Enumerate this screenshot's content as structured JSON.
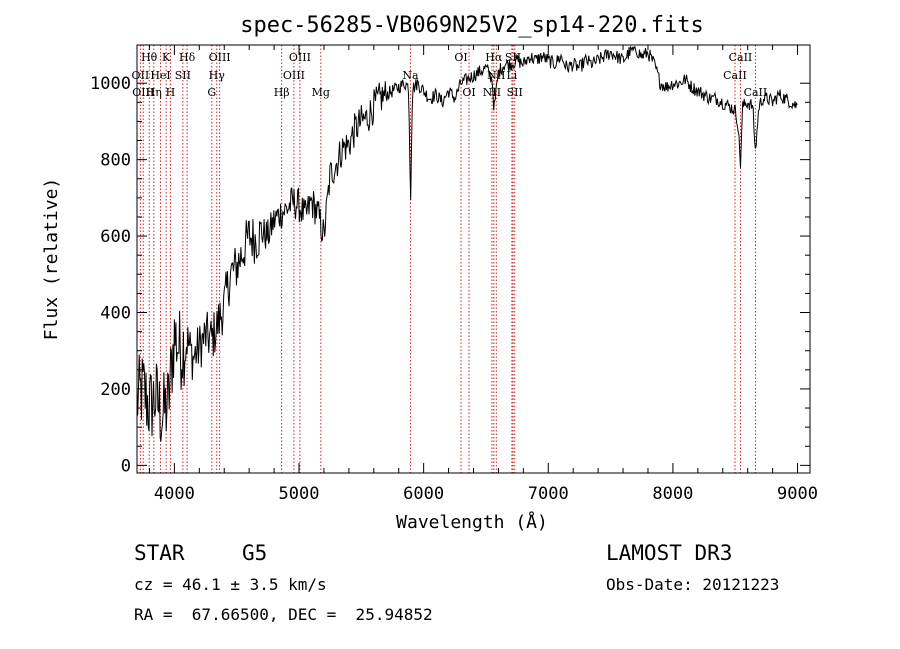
{
  "chart_data": {
    "type": "line",
    "title": "spec-56285-VB069N25V2_sp14-220.fits",
    "xlabel": "Wavelength (Å)",
    "ylabel": "Flux (relative)",
    "xlim": [
      3700,
      9100
    ],
    "ylim": [
      -20,
      1100
    ],
    "xticks": [
      4000,
      5000,
      6000,
      7000,
      8000,
      9000
    ],
    "yticks": [
      0,
      200,
      400,
      600,
      800,
      1000
    ],
    "series": [
      {
        "name": "flux",
        "x": [
          3700,
          3750,
          3800,
          3850,
          3900,
          3950,
          4000,
          4050,
          4100,
          4150,
          4200,
          4250,
          4300,
          4350,
          4400,
          4450,
          4500,
          4550,
          4600,
          4650,
          4700,
          4750,
          4800,
          4850,
          4900,
          4950,
          5000,
          5050,
          5100,
          5150,
          5200,
          5250,
          5300,
          5350,
          5400,
          5450,
          5500,
          5550,
          5600,
          5650,
          5700,
          5750,
          5800,
          5850,
          5880,
          5895,
          5910,
          5950,
          6000,
          6050,
          6100,
          6150,
          6200,
          6250,
          6300,
          6350,
          6400,
          6450,
          6500,
          6550,
          6565,
          6600,
          6650,
          6700,
          6750,
          6800,
          6850,
          6900,
          6950,
          7000,
          7050,
          7100,
          7150,
          7200,
          7250,
          7300,
          7350,
          7400,
          7450,
          7500,
          7550,
          7600,
          7650,
          7700,
          7750,
          7800,
          7850,
          7900,
          7950,
          8000,
          8050,
          8100,
          8150,
          8200,
          8250,
          8300,
          8350,
          8400,
          8450,
          8498,
          8520,
          8542,
          8560,
          8600,
          8640,
          8662,
          8690,
          8720,
          8760,
          8800,
          8850,
          8900,
          8950,
          9000
        ],
        "y": [
          170,
          200,
          150,
          180,
          130,
          160,
          340,
          300,
          330,
          280,
          310,
          340,
          330,
          370,
          420,
          500,
          520,
          560,
          600,
          590,
          610,
          600,
          640,
          660,
          670,
          690,
          680,
          650,
          690,
          660,
          600,
          760,
          790,
          830,
          840,
          880,
          900,
          910,
          940,
          960,
          970,
          980,
          990,
          1000,
          990,
          690,
          985,
          1000,
          980,
          960,
          970,
          950,
          980,
          960,
          1000,
          1010,
          1020,
          1030,
          1040,
          1010,
          930,
          1030,
          1050,
          1050,
          1060,
          1050,
          1070,
          1060,
          1070,
          1060,
          1050,
          1070,
          1040,
          1050,
          1040,
          1060,
          1050,
          1060,
          1070,
          1080,
          1070,
          1060,
          1080,
          1090,
          1070,
          1080,
          1050,
          1000,
          990,
          1000,
          1000,
          1010,
          990,
          980,
          970,
          960,
          960,
          950,
          940,
          930,
          900,
          790,
          940,
          950,
          940,
          820,
          940,
          960,
          960,
          950,
          970,
          960,
          950,
          940
        ]
      }
    ],
    "lines": [
      {
        "wavelength": 3727,
        "labels": [
          "OII"
        ],
        "row": 1
      },
      {
        "wavelength": 3750,
        "labels": [
          "OIII"
        ],
        "row": 2
      },
      {
        "wavelength": 3798,
        "labels": [
          "Hθ"
        ],
        "row": 0
      },
      {
        "wavelength": 3835,
        "labels": [
          "Hη"
        ],
        "row": 2
      },
      {
        "wavelength": 3889,
        "labels": [
          "HeI"
        ],
        "row": 1
      },
      {
        "wavelength": 3934,
        "labels": [
          "K"
        ],
        "row": 0
      },
      {
        "wavelength": 3968,
        "labels": [
          "H"
        ],
        "row": 2
      },
      {
        "wavelength": 4068,
        "labels": [
          "SII"
        ],
        "row": 1
      },
      {
        "wavelength": 4102,
        "labels": [
          "Hδ"
        ],
        "row": 0
      },
      {
        "wavelength": 4300,
        "labels": [
          "G"
        ],
        "row": 2
      },
      {
        "wavelength": 4340,
        "labels": [
          "Hγ"
        ],
        "row": 1
      },
      {
        "wavelength": 4363,
        "labels": [
          "OIII"
        ],
        "row": 0
      },
      {
        "wavelength": 4861,
        "labels": [
          "Hβ"
        ],
        "row": 2
      },
      {
        "wavelength": 4959,
        "labels": [
          "OIII"
        ],
        "row": 1
      },
      {
        "wavelength": 5007,
        "labels": [
          "OIII"
        ],
        "row": 0
      },
      {
        "wavelength": 5175,
        "labels": [
          "Mg"
        ],
        "row": 2
      },
      {
        "wavelength": 5894,
        "labels": [
          "Na"
        ],
        "row": 1
      },
      {
        "wavelength": 6300,
        "labels": [
          "OI"
        ],
        "row": 0
      },
      {
        "wavelength": 6364,
        "labels": [
          "OI"
        ],
        "row": 2
      },
      {
        "wavelength": 6548,
        "labels": [
          "NII"
        ],
        "row": 2
      },
      {
        "wavelength": 6563,
        "labels": [
          "Hα"
        ],
        "row": 0
      },
      {
        "wavelength": 6583,
        "labels": [
          "NII"
        ],
        "row": 1
      },
      {
        "wavelength": 6708,
        "labels": [
          "Li"
        ],
        "row": 1
      },
      {
        "wavelength": 6717,
        "labels": [
          "SII"
        ],
        "row": 0
      },
      {
        "wavelength": 6731,
        "labels": [
          "SII"
        ],
        "row": 2
      },
      {
        "wavelength": 8498,
        "labels": [
          "CaII"
        ],
        "row": 1
      },
      {
        "wavelength": 8542,
        "labels": [
          "CaII"
        ],
        "row": 0
      },
      {
        "wavelength": 8662,
        "labels": [
          "CaII"
        ],
        "row": 2
      }
    ]
  },
  "info": {
    "object_class": "STAR",
    "subclass": "G5",
    "survey": "LAMOST DR3",
    "redshift": "cz = 46.1 ± 3.5 km/s",
    "obs_date": "Obs-Date: 20121223",
    "coords": "RA =  67.66500, DEC =  25.94852"
  }
}
